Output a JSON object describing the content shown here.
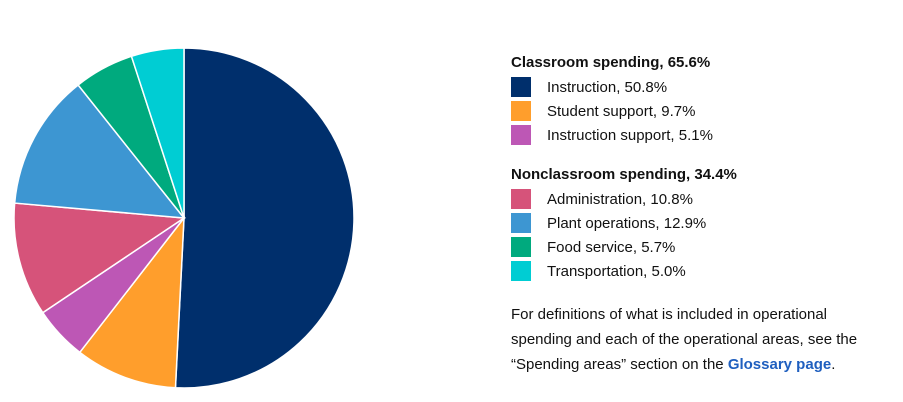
{
  "chart_data": {
    "type": "pie",
    "groups": [
      {
        "title": "Classroom spending, 65.6%",
        "items": [
          {
            "label": "Instruction, 50.8%",
            "value": 50.8,
            "color": "#002f6c"
          },
          {
            "label": "Student support, 9.7%",
            "value": 9.7,
            "color": "#ff9e2c"
          },
          {
            "label": "Instruction support, 5.1%",
            "value": 5.1,
            "color": "#bd57b5"
          }
        ]
      },
      {
        "title": "Nonclassroom spending, 34.4%",
        "items": [
          {
            "label": "Administration, 10.8%",
            "value": 10.8,
            "color": "#d6537a"
          },
          {
            "label": "Plant operations, 12.9%",
            "value": 12.9,
            "color": "#3d96d2"
          },
          {
            "label": "Food service, 5.7%",
            "value": 5.7,
            "color": "#00aa7e"
          },
          {
            "label": "Transportation, 5.0%",
            "value": 5.0,
            "color": "#00cdd3"
          }
        ]
      }
    ]
  },
  "note": {
    "text_before": "For definitions of what is included in operational spending and each of the operational areas, see the “Spending areas” section on the ",
    "link_text": "Glossary page",
    "text_after": "."
  }
}
